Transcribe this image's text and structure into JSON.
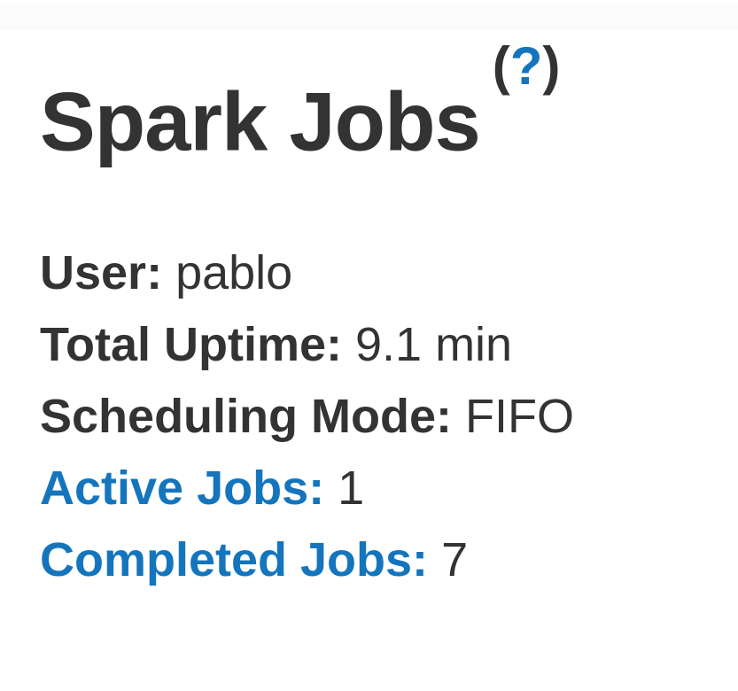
{
  "header": {
    "title": "Spark Jobs",
    "help": {
      "open_paren": "(",
      "question_mark": "?",
      "close_paren": ")"
    }
  },
  "summary": {
    "items": [
      {
        "label": "User:",
        "value": "pablo"
      },
      {
        "label": "Total Uptime:",
        "value": "9.1 min"
      },
      {
        "label": "Scheduling Mode:",
        "value": "FIFO"
      },
      {
        "label": "Active Jobs:",
        "value": "1"
      },
      {
        "label": "Completed Jobs:",
        "value": "7"
      }
    ]
  },
  "colors": {
    "link": "#1475bd",
    "text": "#333333",
    "top_strip": "#fbfbfb"
  }
}
